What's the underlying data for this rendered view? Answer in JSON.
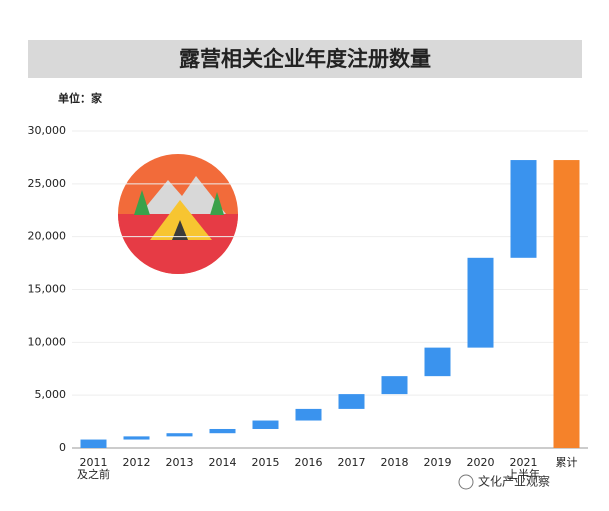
{
  "chart_data": {
    "type": "waterfall",
    "title": "露营相关企业年度注册数量",
    "unit_label": "单位：家",
    "categories": [
      [
        "2011",
        "及之前"
      ],
      [
        "2012"
      ],
      [
        "2013"
      ],
      [
        "2014"
      ],
      [
        "2015"
      ],
      [
        "2016"
      ],
      [
        "2017"
      ],
      [
        "2018"
      ],
      [
        "2019"
      ],
      [
        "2020"
      ],
      [
        "2021",
        "上半年"
      ],
      [
        "累计"
      ]
    ],
    "values": [
      800,
      300,
      300,
      400,
      800,
      1100,
      1400,
      1700,
      2700,
      8500,
      9250,
      27250
    ],
    "total": [
      false,
      false,
      false,
      false,
      false,
      false,
      false,
      false,
      false,
      false,
      false,
      true
    ],
    "color": "#3a93ee",
    "total_color": "#f5822a",
    "ylim": [
      0,
      30000
    ],
    "yticks": [
      0,
      {
        "value": 5000,
        "label": "5,000"
      },
      {
        "value": 10000,
        "label": "10,000"
      },
      {
        "value": 15000,
        "label": "15,000"
      },
      {
        "value": 20000,
        "label": "20,000"
      },
      {
        "value": 25000,
        "label": "25,000"
      },
      {
        "value": 30000,
        "label": "30,000"
      }
    ],
    "grid": true,
    "footer": "文化产业观察"
  }
}
